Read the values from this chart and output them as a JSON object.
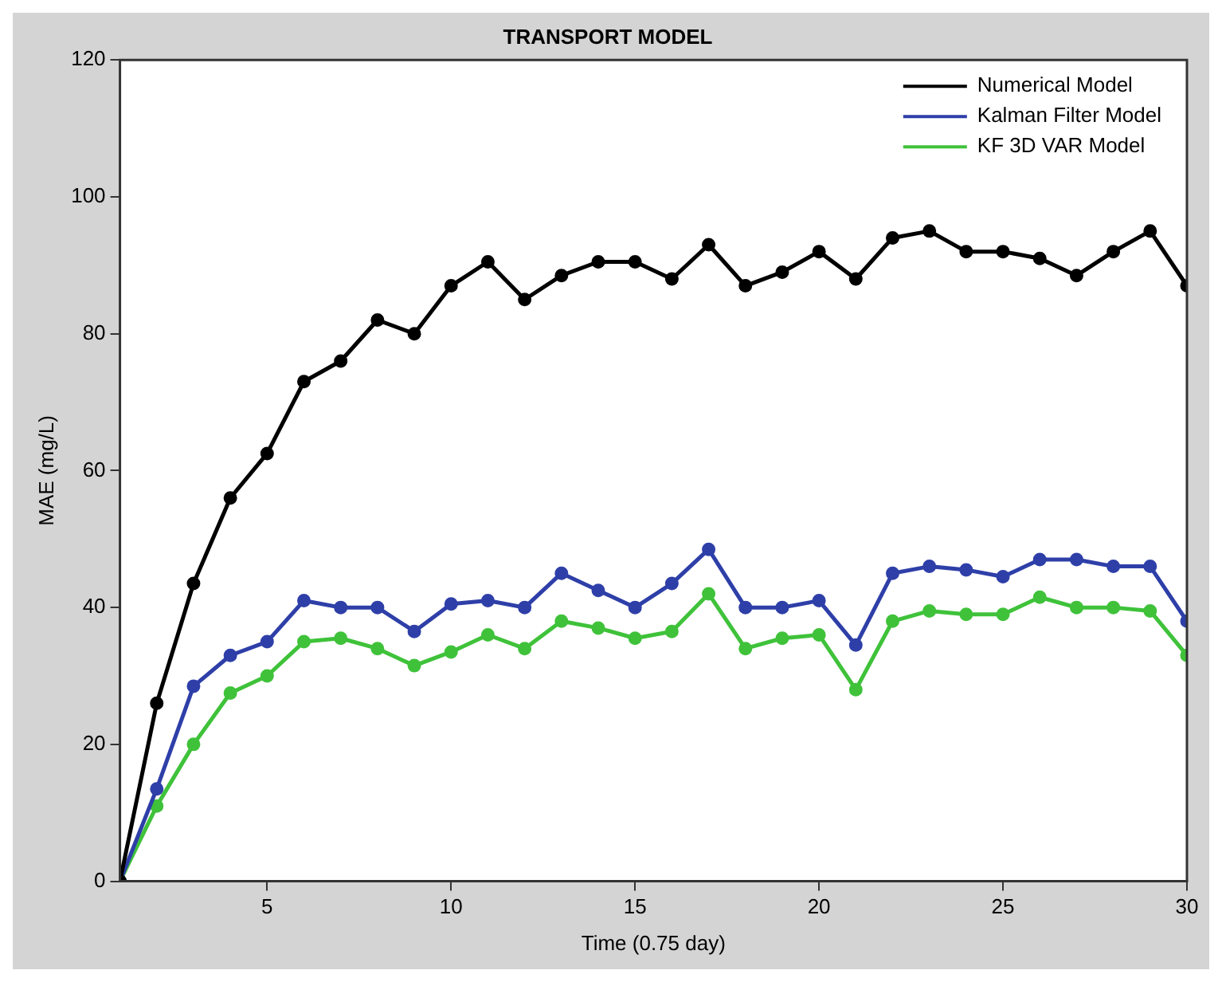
{
  "chart_data": {
    "type": "line",
    "title": "TRANSPORT MODEL",
    "xlabel": "Time (0.75 day)",
    "ylabel": "MAE (mg/L)",
    "x": [
      1,
      2,
      3,
      4,
      5,
      6,
      7,
      8,
      9,
      10,
      11,
      12,
      13,
      14,
      15,
      16,
      17,
      18,
      19,
      20,
      21,
      22,
      23,
      24,
      25,
      26,
      27,
      28,
      29,
      30
    ],
    "series": [
      {
        "name": "Numerical Model",
        "color": "#000000",
        "values": [
          0,
          26,
          43.5,
          56,
          62.5,
          73,
          76,
          82,
          80,
          87,
          90.5,
          85,
          88.5,
          90.5,
          90.5,
          88,
          93,
          87,
          89,
          92,
          88,
          94,
          95,
          92,
          92,
          91,
          88.5,
          92,
          95,
          87
        ]
      },
      {
        "name": "Kalman Filter Model",
        "color": "#2e3fa8",
        "values": [
          0,
          13.5,
          28.5,
          33,
          35,
          41,
          40,
          40,
          36.5,
          40.5,
          41,
          40,
          45,
          42.5,
          40,
          43.5,
          48.5,
          40,
          40,
          41,
          34.5,
          45,
          46,
          45.5,
          44.5,
          47,
          47,
          46,
          46,
          38
        ]
      },
      {
        "name": "KF 3D VAR Model",
        "color": "#3fc23a",
        "values": [
          0,
          11,
          20,
          27.5,
          30,
          35,
          35.5,
          34,
          31.5,
          33.5,
          36,
          34,
          38,
          37,
          35.5,
          36.5,
          42,
          34,
          35.5,
          36,
          28,
          38,
          39.5,
          39,
          39,
          41.5,
          40,
          40,
          39.5,
          33
        ]
      }
    ],
    "xlim": [
      1,
      30
    ],
    "xticks": [
      5,
      10,
      15,
      20,
      25,
      30
    ],
    "ylim": [
      0,
      120
    ],
    "yticks": [
      0,
      20,
      40,
      60,
      80,
      100,
      120
    ],
    "grid": false,
    "legend": "top right",
    "marker": "circle",
    "line_style": "solid"
  }
}
